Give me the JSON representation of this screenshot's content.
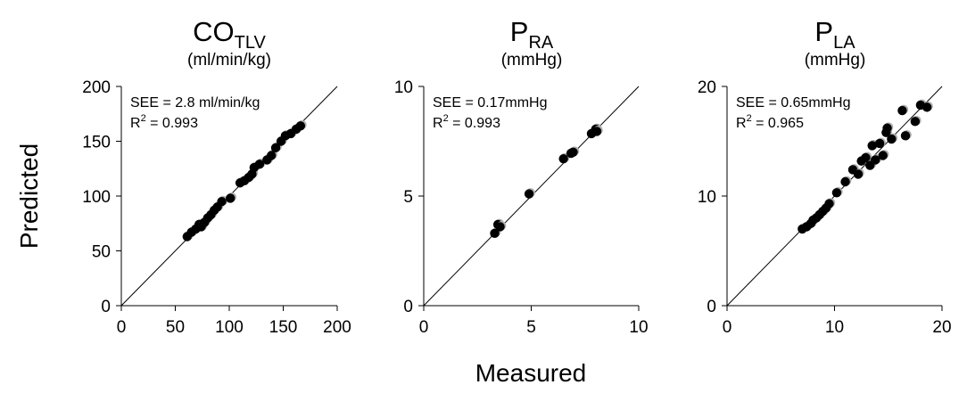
{
  "figure": {
    "xlabel": "Measured",
    "ylabel": "Predicted"
  },
  "chart_data": [
    {
      "type": "scatter",
      "title": "CO",
      "title_sub": "TLV",
      "units": "(ml/min/kg)",
      "xlim": [
        0,
        200
      ],
      "ylim": [
        0,
        200
      ],
      "xticks": [
        0,
        50,
        100,
        150,
        200
      ],
      "yticks": [
        0,
        50,
        100,
        150,
        200
      ],
      "stat_see": "SEE = 2.8 ml/min/kg",
      "stat_r2_prefix": "R",
      "stat_r2_sup": "2",
      "stat_r2_value": " = 0.993",
      "identity_line": true,
      "points": [
        [
          61,
          63
        ],
        [
          65,
          67
        ],
        [
          69,
          70
        ],
        [
          72,
          74
        ],
        [
          74,
          72
        ],
        [
          77,
          76
        ],
        [
          80,
          80
        ],
        [
          83,
          83
        ],
        [
          86,
          87
        ],
        [
          89,
          90
        ],
        [
          93,
          95
        ],
        [
          101,
          98
        ],
        [
          110,
          112
        ],
        [
          114,
          114
        ],
        [
          118,
          117
        ],
        [
          121,
          120
        ],
        [
          123,
          126
        ],
        [
          128,
          129
        ],
        [
          135,
          133
        ],
        [
          139,
          137
        ],
        [
          143,
          144
        ],
        [
          148,
          150
        ],
        [
          152,
          155
        ],
        [
          157,
          157
        ],
        [
          162,
          161
        ],
        [
          166,
          164
        ]
      ]
    },
    {
      "type": "scatter",
      "title": "P",
      "title_sub": "RA",
      "units": "(mmHg)",
      "xlim": [
        0,
        10
      ],
      "ylim": [
        0,
        10
      ],
      "xticks": [
        0,
        5,
        10
      ],
      "yticks": [
        0,
        5,
        10
      ],
      "stat_see": "SEE = 0.17mmHg",
      "stat_r2_prefix": "R",
      "stat_r2_sup": "2",
      "stat_r2_value": " = 0.993",
      "identity_line": true,
      "points": [
        [
          3.3,
          3.3
        ],
        [
          3.45,
          3.7
        ],
        [
          3.55,
          3.6
        ],
        [
          4.9,
          5.1
        ],
        [
          6.5,
          6.7
        ],
        [
          6.85,
          6.95
        ],
        [
          6.95,
          7.0
        ],
        [
          7.8,
          7.85
        ],
        [
          8.0,
          8.05
        ],
        [
          8.05,
          7.95
        ]
      ]
    },
    {
      "type": "scatter",
      "title": "P",
      "title_sub": "LA",
      "units": "(mmHg)",
      "xlim": [
        0,
        20
      ],
      "ylim": [
        0,
        20
      ],
      "xticks": [
        0,
        10,
        20
      ],
      "yticks": [
        0,
        10,
        20
      ],
      "stat_see": "SEE = 0.65mmHg",
      "stat_r2_prefix": "R",
      "stat_r2_sup": "2",
      "stat_r2_value": " = 0.965",
      "identity_line": true,
      "points": [
        [
          7.0,
          7.0
        ],
        [
          7.4,
          7.2
        ],
        [
          7.8,
          7.5
        ],
        [
          8.0,
          7.8
        ],
        [
          8.3,
          8.0
        ],
        [
          8.6,
          8.3
        ],
        [
          8.9,
          8.6
        ],
        [
          9.2,
          8.9
        ],
        [
          9.5,
          9.3
        ],
        [
          10.2,
          10.3
        ],
        [
          11.0,
          11.3
        ],
        [
          11.7,
          12.4
        ],
        [
          12.2,
          12.0
        ],
        [
          12.5,
          13.2
        ],
        [
          12.9,
          13.5
        ],
        [
          13.3,
          12.8
        ],
        [
          13.5,
          14.6
        ],
        [
          13.8,
          13.3
        ],
        [
          14.2,
          14.8
        ],
        [
          14.5,
          13.7
        ],
        [
          14.8,
          15.8
        ],
        [
          14.9,
          16.2
        ],
        [
          15.3,
          15.2
        ],
        [
          16.3,
          17.8
        ],
        [
          16.6,
          15.5
        ],
        [
          17.5,
          16.8
        ],
        [
          18.0,
          18.3
        ],
        [
          18.6,
          18.1
        ]
      ]
    }
  ]
}
